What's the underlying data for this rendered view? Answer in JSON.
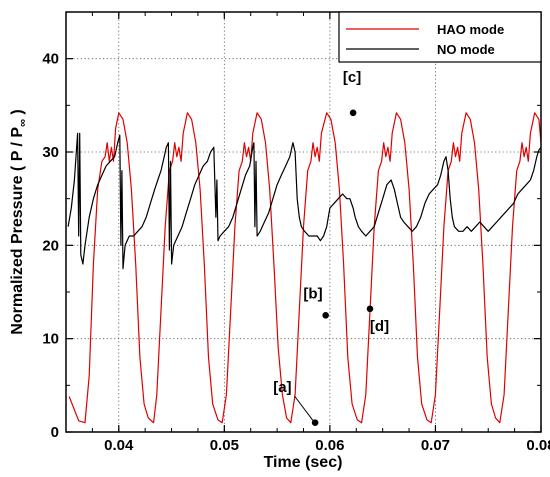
{
  "chart_data": {
    "type": "line",
    "xlabel": "Time (sec)",
    "ylabel": "Normalized  Pressure ( P / P",
    "ylabel_subscript": "∞",
    "ylabel_close": " )",
    "xlim": [
      0.035,
      0.08
    ],
    "ylim": [
      0,
      45
    ],
    "grid": true,
    "grid_style": "dotted",
    "legend_position": "top-right",
    "xticks": [
      {
        "value": 0.04,
        "label": "0.04"
      },
      {
        "value": 0.05,
        "label": "0.05"
      },
      {
        "value": 0.06,
        "label": "0.06"
      },
      {
        "value": 0.07,
        "label": "0.07"
      },
      {
        "value": 0.08,
        "label": "0.08"
      }
    ],
    "yticks": [
      {
        "value": 0,
        "label": "0"
      },
      {
        "value": 10,
        "label": "10"
      },
      {
        "value": 20,
        "label": "20"
      },
      {
        "value": 30,
        "label": "30"
      },
      {
        "value": 40,
        "label": "40"
      }
    ],
    "series": [
      {
        "name": "HAO mode",
        "color": "#e00000",
        "points": [
          [
            0.0353,
            3.8
          ],
          [
            0.0362,
            1.2
          ],
          [
            0.0368,
            1.0
          ],
          [
            0.0372,
            6
          ],
          [
            0.0376,
            18
          ],
          [
            0.038,
            26
          ],
          [
            0.0384,
            29
          ],
          [
            0.0387,
            29.5
          ],
          [
            0.0389,
            31
          ],
          [
            0.0391,
            29
          ],
          [
            0.0393,
            30.5
          ],
          [
            0.0395,
            29
          ],
          [
            0.0397,
            32.5
          ],
          [
            0.04,
            34.2
          ],
          [
            0.0404,
            33.5
          ],
          [
            0.0408,
            31
          ],
          [
            0.0412,
            26
          ],
          [
            0.0416,
            18
          ],
          [
            0.042,
            8
          ],
          [
            0.0424,
            3
          ],
          [
            0.0428,
            1.5
          ],
          [
            0.0433,
            1.0
          ],
          [
            0.0436,
            4
          ],
          [
            0.044,
            13
          ],
          [
            0.0444,
            22
          ],
          [
            0.0448,
            28
          ],
          [
            0.0451,
            29
          ],
          [
            0.0453,
            31
          ],
          [
            0.0455,
            29.5
          ],
          [
            0.0457,
            30.5
          ],
          [
            0.0459,
            29
          ],
          [
            0.0461,
            32
          ],
          [
            0.0465,
            34.2
          ],
          [
            0.0469,
            33.5
          ],
          [
            0.0473,
            31
          ],
          [
            0.0477,
            26
          ],
          [
            0.0481,
            18
          ],
          [
            0.0485,
            8
          ],
          [
            0.0489,
            3
          ],
          [
            0.0494,
            1.3
          ],
          [
            0.0498,
            1.0
          ],
          [
            0.0502,
            4
          ],
          [
            0.0506,
            13
          ],
          [
            0.051,
            22
          ],
          [
            0.0514,
            28
          ],
          [
            0.0517,
            29
          ],
          [
            0.0519,
            31
          ],
          [
            0.0521,
            29.5
          ],
          [
            0.0523,
            30.5
          ],
          [
            0.0525,
            29
          ],
          [
            0.0527,
            32
          ],
          [
            0.0531,
            34.2
          ],
          [
            0.0535,
            33.5
          ],
          [
            0.0539,
            31
          ],
          [
            0.0543,
            26
          ],
          [
            0.0547,
            18
          ],
          [
            0.0551,
            9
          ],
          [
            0.0555,
            4
          ],
          [
            0.0559,
            1.5
          ],
          [
            0.0563,
            1.0
          ],
          [
            0.0567,
            4
          ],
          [
            0.0571,
            13
          ],
          [
            0.0575,
            22
          ],
          [
            0.0579,
            28
          ],
          [
            0.0582,
            29
          ],
          [
            0.0584,
            31
          ],
          [
            0.0586,
            29.5
          ],
          [
            0.0588,
            30.5
          ],
          [
            0.059,
            29
          ],
          [
            0.0592,
            32
          ],
          [
            0.0597,
            34.2
          ],
          [
            0.0601,
            33.5
          ],
          [
            0.0605,
            31
          ],
          [
            0.0609,
            26
          ],
          [
            0.0613,
            18
          ],
          [
            0.0617,
            8
          ],
          [
            0.0621,
            3
          ],
          [
            0.0626,
            1.3
          ],
          [
            0.063,
            1.0
          ],
          [
            0.0634,
            4
          ],
          [
            0.0638,
            13
          ],
          [
            0.0642,
            22
          ],
          [
            0.0646,
            28
          ],
          [
            0.0649,
            29
          ],
          [
            0.0651,
            31
          ],
          [
            0.0653,
            29.5
          ],
          [
            0.0655,
            30.5
          ],
          [
            0.0657,
            29
          ],
          [
            0.0659,
            32
          ],
          [
            0.0663,
            34.2
          ],
          [
            0.0667,
            33.5
          ],
          [
            0.0671,
            31
          ],
          [
            0.0675,
            26
          ],
          [
            0.0679,
            18
          ],
          [
            0.0683,
            8
          ],
          [
            0.0687,
            3
          ],
          [
            0.0692,
            1.3
          ],
          [
            0.0696,
            1.0
          ],
          [
            0.07,
            4
          ],
          [
            0.0704,
            13
          ],
          [
            0.0708,
            22
          ],
          [
            0.0712,
            28
          ],
          [
            0.0715,
            29
          ],
          [
            0.0717,
            31
          ],
          [
            0.0719,
            29.5
          ],
          [
            0.0721,
            30.5
          ],
          [
            0.0723,
            29
          ],
          [
            0.0725,
            32
          ],
          [
            0.0729,
            34.2
          ],
          [
            0.0733,
            33.5
          ],
          [
            0.0737,
            31
          ],
          [
            0.0741,
            26
          ],
          [
            0.0745,
            18
          ],
          [
            0.0749,
            8
          ],
          [
            0.0753,
            3
          ],
          [
            0.0757,
            1.5
          ],
          [
            0.0761,
            1.0
          ],
          [
            0.0765,
            4
          ],
          [
            0.0769,
            13
          ],
          [
            0.0773,
            22
          ],
          [
            0.0777,
            28
          ],
          [
            0.078,
            29
          ],
          [
            0.0782,
            31
          ],
          [
            0.0784,
            29.5
          ],
          [
            0.0786,
            30.5
          ],
          [
            0.0788,
            29
          ],
          [
            0.079,
            32
          ],
          [
            0.0794,
            34.2
          ],
          [
            0.0798,
            33.5
          ],
          [
            0.08,
            31
          ]
        ]
      },
      {
        "name": "NO mode",
        "color": "#000000",
        "points": [
          [
            0.0352,
            22
          ],
          [
            0.0355,
            24
          ],
          [
            0.0358,
            27
          ],
          [
            0.0361,
            32
          ],
          [
            0.0362,
            21
          ],
          [
            0.0363,
            32
          ],
          [
            0.0364,
            19
          ],
          [
            0.0366,
            18
          ],
          [
            0.0368,
            20
          ],
          [
            0.0372,
            23
          ],
          [
            0.0376,
            25
          ],
          [
            0.038,
            26.5
          ],
          [
            0.0384,
            27.5
          ],
          [
            0.0388,
            28.5
          ],
          [
            0.0392,
            29
          ],
          [
            0.0396,
            29.5
          ],
          [
            0.0399,
            31
          ],
          [
            0.0401,
            31.8
          ],
          [
            0.0402,
            20
          ],
          [
            0.0403,
            28
          ],
          [
            0.0404,
            17.5
          ],
          [
            0.0406,
            20
          ],
          [
            0.041,
            21
          ],
          [
            0.0414,
            21
          ],
          [
            0.0418,
            21.5
          ],
          [
            0.0422,
            22
          ],
          [
            0.0426,
            23
          ],
          [
            0.043,
            24.5
          ],
          [
            0.0434,
            26
          ],
          [
            0.0437,
            27
          ],
          [
            0.044,
            28
          ],
          [
            0.0443,
            29.5
          ],
          [
            0.0445,
            30.5
          ],
          [
            0.0447,
            31
          ],
          [
            0.0448,
            19.5
          ],
          [
            0.0449,
            29
          ],
          [
            0.045,
            18
          ],
          [
            0.0452,
            20
          ],
          [
            0.0456,
            21
          ],
          [
            0.046,
            22
          ],
          [
            0.0464,
            23.5
          ],
          [
            0.0468,
            25
          ],
          [
            0.0472,
            26.5
          ],
          [
            0.0476,
            27.5
          ],
          [
            0.048,
            28.5
          ],
          [
            0.0484,
            29
          ],
          [
            0.0487,
            30
          ],
          [
            0.049,
            30.5
          ],
          [
            0.0492,
            23
          ],
          [
            0.0493,
            27
          ],
          [
            0.0494,
            20.5
          ],
          [
            0.0496,
            21
          ],
          [
            0.05,
            21.5
          ],
          [
            0.0504,
            22
          ],
          [
            0.0508,
            23
          ],
          [
            0.0512,
            24.5
          ],
          [
            0.0516,
            26
          ],
          [
            0.052,
            27.5
          ],
          [
            0.0524,
            28.5
          ],
          [
            0.0527,
            30.5
          ],
          [
            0.0528,
            31
          ],
          [
            0.0529,
            22
          ],
          [
            0.053,
            29
          ],
          [
            0.0531,
            21
          ],
          [
            0.0534,
            21.5
          ],
          [
            0.0538,
            22.5
          ],
          [
            0.0542,
            23.5
          ],
          [
            0.0546,
            25
          ],
          [
            0.055,
            26.5
          ],
          [
            0.0554,
            27.5
          ],
          [
            0.0558,
            28.5
          ],
          [
            0.0562,
            29.5
          ],
          [
            0.0565,
            31
          ],
          [
            0.0567,
            30
          ],
          [
            0.0569,
            25
          ],
          [
            0.0571,
            23
          ],
          [
            0.0573,
            22
          ],
          [
            0.0576,
            21.5
          ],
          [
            0.058,
            21
          ],
          [
            0.0584,
            21
          ],
          [
            0.0588,
            21
          ],
          [
            0.0591,
            20.5
          ],
          [
            0.0594,
            21
          ],
          [
            0.0597,
            22
          ],
          [
            0.06,
            24
          ],
          [
            0.0604,
            24.5
          ],
          [
            0.0608,
            25
          ],
          [
            0.0612,
            25.5
          ],
          [
            0.0616,
            25
          ],
          [
            0.0619,
            25
          ],
          [
            0.0622,
            24
          ],
          [
            0.0624,
            23
          ],
          [
            0.0627,
            22
          ],
          [
            0.063,
            21.5
          ],
          [
            0.0634,
            21
          ],
          [
            0.0638,
            21.5
          ],
          [
            0.0642,
            22
          ],
          [
            0.0646,
            23.5
          ],
          [
            0.065,
            25
          ],
          [
            0.0654,
            26.5
          ],
          [
            0.0658,
            27
          ],
          [
            0.0661,
            26
          ],
          [
            0.0664,
            24.5
          ],
          [
            0.0667,
            23
          ],
          [
            0.067,
            22.5
          ],
          [
            0.0674,
            22
          ],
          [
            0.0678,
            21.5
          ],
          [
            0.0682,
            22
          ],
          [
            0.0686,
            23
          ],
          [
            0.069,
            24.5
          ],
          [
            0.0694,
            25.5
          ],
          [
            0.0698,
            26
          ],
          [
            0.0702,
            26.5
          ],
          [
            0.0705,
            27.5
          ],
          [
            0.0708,
            29
          ],
          [
            0.071,
            29.5
          ],
          [
            0.0712,
            28
          ],
          [
            0.0714,
            25
          ],
          [
            0.0716,
            23
          ],
          [
            0.0718,
            22
          ],
          [
            0.0722,
            21.5
          ],
          [
            0.0726,
            21.5
          ],
          [
            0.073,
            22
          ],
          [
            0.0734,
            21.5
          ],
          [
            0.0738,
            22
          ],
          [
            0.0742,
            22.5
          ],
          [
            0.0746,
            22
          ],
          [
            0.075,
            21.5
          ],
          [
            0.0754,
            22
          ],
          [
            0.0758,
            22.5
          ],
          [
            0.0762,
            23
          ],
          [
            0.0766,
            23.5
          ],
          [
            0.077,
            24
          ],
          [
            0.0774,
            24.5
          ],
          [
            0.0778,
            25.5
          ],
          [
            0.0782,
            26
          ],
          [
            0.0786,
            26.5
          ],
          [
            0.079,
            27
          ],
          [
            0.0793,
            28
          ],
          [
            0.0796,
            29.5
          ],
          [
            0.0798,
            30.2
          ],
          [
            0.08,
            30.5
          ]
        ]
      }
    ],
    "annotations": [
      {
        "label": "[a]",
        "x": 0.0586,
        "y": 1.0,
        "label_x": 0.0555,
        "label_y": 4.3,
        "leader": true
      },
      {
        "label": "[b]",
        "x": 0.0596,
        "y": 12.5,
        "label_x": 0.0584,
        "label_y": 14.3,
        "leader": false
      },
      {
        "label": "[c]",
        "x": 0.0622,
        "y": 34.2,
        "label_x": 0.0621,
        "label_y": 37.5,
        "leader": false
      },
      {
        "label": "[d]",
        "x": 0.0638,
        "y": 13.2,
        "label_x": 0.0647,
        "label_y": 10.8,
        "leader": false
      }
    ]
  }
}
